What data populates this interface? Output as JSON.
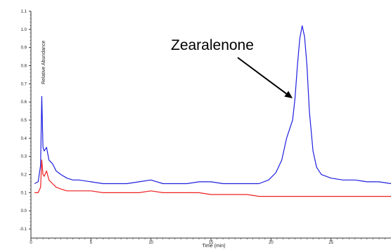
{
  "chart_data": {
    "type": "line",
    "xlabel": "Time (min)",
    "ylabel": "Relative Abundance",
    "xlim": [
      0,
      30
    ],
    "ylim": [
      -0.15,
      1.1
    ],
    "x_ticks": [
      0,
      5,
      10,
      15,
      20,
      25
    ],
    "y_ticks": [
      -0.1,
      0.0,
      0.1,
      0.2,
      0.3,
      0.4,
      0.5,
      0.6,
      0.7,
      0.8,
      0.9,
      1.0,
      1.1
    ],
    "x_tick_labels": [
      "0",
      "5",
      "10",
      "15",
      "20",
      "25"
    ],
    "y_tick_labels": [
      "-0.1",
      "0.0",
      "0.1",
      "0.2",
      "0.3",
      "0.4",
      "0.5",
      "0.6",
      "0.7",
      "0.8",
      "0.9",
      "1.0",
      "1.1"
    ],
    "series": [
      {
        "color": "#1f1fe0",
        "x": [
          0.3,
          0.6,
          0.8,
          0.9,
          1.0,
          1.1,
          1.3,
          1.5,
          1.8,
          2.1,
          2.5,
          3.0,
          3.5,
          4,
          5,
          6,
          7,
          8,
          9,
          10,
          11,
          12,
          13,
          14,
          15,
          16,
          17,
          18,
          19,
          19.8,
          20.4,
          20.9,
          21.3,
          21.6,
          21.8,
          22.0,
          22.2,
          22.4,
          22.6,
          22.8,
          23.0,
          23.2,
          23.5,
          23.8,
          24.2,
          24.6,
          25,
          26,
          27,
          28,
          29,
          30
        ],
        "y": [
          0.15,
          0.16,
          0.25,
          0.63,
          0.35,
          0.33,
          0.35,
          0.28,
          0.26,
          0.22,
          0.2,
          0.18,
          0.17,
          0.17,
          0.16,
          0.15,
          0.15,
          0.15,
          0.16,
          0.17,
          0.15,
          0.15,
          0.15,
          0.16,
          0.16,
          0.15,
          0.15,
          0.15,
          0.15,
          0.17,
          0.21,
          0.28,
          0.4,
          0.46,
          0.5,
          0.62,
          0.8,
          0.95,
          1.02,
          0.96,
          0.8,
          0.55,
          0.33,
          0.24,
          0.2,
          0.19,
          0.18,
          0.17,
          0.17,
          0.16,
          0.16,
          0.15
        ]
      },
      {
        "color": "#ee2020",
        "x": [
          0.3,
          0.6,
          0.8,
          0.9,
          1.0,
          1.1,
          1.3,
          1.5,
          1.8,
          2.1,
          2.5,
          3,
          4,
          5,
          6,
          7,
          8,
          9,
          10,
          11,
          12,
          13,
          14,
          15,
          16,
          17,
          18,
          19,
          20,
          21,
          22,
          23,
          24,
          25,
          26,
          27,
          28,
          29,
          30
        ],
        "y": [
          0.1,
          0.1,
          0.13,
          0.28,
          0.2,
          0.19,
          0.22,
          0.17,
          0.15,
          0.13,
          0.12,
          0.11,
          0.11,
          0.11,
          0.1,
          0.1,
          0.1,
          0.1,
          0.11,
          0.1,
          0.1,
          0.1,
          0.1,
          0.09,
          0.09,
          0.09,
          0.09,
          0.08,
          0.08,
          0.08,
          0.08,
          0.08,
          0.08,
          0.08,
          0.08,
          0.08,
          0.08,
          0.08,
          0.08
        ]
      }
    ],
    "annotation": {
      "text": "Zearalenone",
      "target_x": 21.8,
      "target_y": 0.62
    },
    "grid": false,
    "legend": "none"
  }
}
